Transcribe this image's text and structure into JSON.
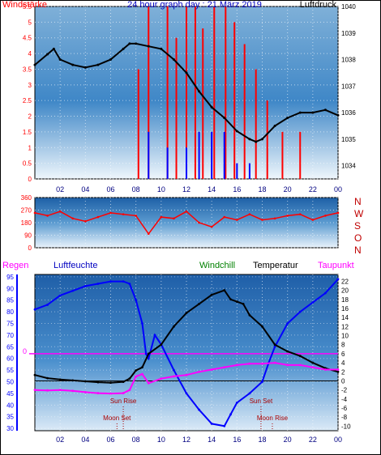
{
  "header": {
    "left_label": "Windstärke",
    "title": "24 hour graph day : 21 März 2019",
    "right_label": "Luftdruck"
  },
  "colors": {
    "red": "#ff0000",
    "blue": "#0000ff",
    "black": "#000000",
    "magenta": "#ff00ff",
    "green": "#008000",
    "navy": "#000080",
    "darkred": "#aa0000"
  },
  "chart_data": [
    {
      "type": "bar",
      "title": "24 hour graph day : 21 März 2019",
      "ylabel_left": "Windstärke",
      "ylabel_right": "Luftdruck",
      "x_ticks": [
        "02",
        "04",
        "06",
        "08",
        "10",
        "12",
        "14",
        "16",
        "18",
        "20",
        "22",
        "00"
      ],
      "y_left_ticks": [
        "0",
        "0.5",
        "1",
        "1.5",
        "2",
        "2.5",
        "3",
        "3.5",
        "4",
        "4.5",
        "5",
        "5.5"
      ],
      "y_right_ticks": [
        "1034",
        "1035",
        "1036",
        "1037",
        "1038",
        "1039",
        "1040"
      ],
      "xlim": [
        0,
        24
      ],
      "ylim_left": [
        0,
        5.5
      ],
      "ylim_right": [
        1033.5,
        1040
      ],
      "wind_gust_red": [
        [
          8.2,
          3.5
        ],
        [
          9.0,
          5.5
        ],
        [
          10.5,
          5.5
        ],
        [
          11.2,
          4.5
        ],
        [
          12.0,
          5.5
        ],
        [
          12.7,
          5.5
        ],
        [
          13.3,
          4.8
        ],
        [
          14.2,
          5.5
        ],
        [
          15.1,
          5.5
        ],
        [
          15.8,
          5.0
        ],
        [
          16.6,
          4.3
        ],
        [
          17.5,
          3.5
        ],
        [
          18.4,
          2.5
        ],
        [
          19.6,
          1.5
        ],
        [
          21.0,
          1.5
        ]
      ],
      "wind_mean_blue": [
        [
          9.0,
          1.5
        ],
        [
          10.5,
          1.0
        ],
        [
          12.0,
          1.0
        ],
        [
          13.0,
          1.5
        ],
        [
          14.0,
          1.5
        ],
        [
          15.0,
          1.5
        ],
        [
          16.0,
          0.5
        ],
        [
          17.0,
          0.5
        ]
      ],
      "series": [
        {
          "name": "Luftdruck",
          "color": "#000000",
          "points": [
            [
              0,
              1037.8
            ],
            [
              1,
              1038.2
            ],
            [
              1.5,
              1038.4
            ],
            [
              2,
              1038.0
            ],
            [
              3,
              1037.8
            ],
            [
              4,
              1037.7
            ],
            [
              5,
              1037.8
            ],
            [
              6,
              1038.0
            ],
            [
              7,
              1038.4
            ],
            [
              7.5,
              1038.6
            ],
            [
              8,
              1038.6
            ],
            [
              9,
              1038.5
            ],
            [
              10,
              1038.4
            ],
            [
              11,
              1038.0
            ],
            [
              12,
              1037.5
            ],
            [
              13,
              1036.8
            ],
            [
              14,
              1036.2
            ],
            [
              15,
              1035.8
            ],
            [
              16,
              1035.3
            ],
            [
              17,
              1035.0
            ],
            [
              17.5,
              1034.9
            ],
            [
              18,
              1035.0
            ],
            [
              19,
              1035.5
            ],
            [
              20,
              1035.8
            ],
            [
              21,
              1036.0
            ],
            [
              22,
              1036.0
            ],
            [
              23,
              1036.1
            ],
            [
              24,
              1035.9
            ]
          ]
        }
      ]
    },
    {
      "type": "scatter",
      "title": "",
      "ylabel_left": "",
      "direction_letters": [
        "N",
        "W",
        "S",
        "O",
        "N"
      ],
      "x_ticks": [
        "02",
        "04",
        "06",
        "08",
        "10",
        "12",
        "14",
        "16",
        "18",
        "20",
        "22",
        "00"
      ],
      "y_ticks": [
        "0",
        "90",
        "180",
        "270",
        "360"
      ],
      "xlim": [
        0,
        24
      ],
      "ylim": [
        0,
        360
      ],
      "direction_series": [
        {
          "name": "Windrichtung",
          "color": "#ff0000",
          "points": [
            [
              0,
              250
            ],
            [
              1,
              230
            ],
            [
              2,
              260
            ],
            [
              3,
              210
            ],
            [
              4,
              190
            ],
            [
              5,
              220
            ],
            [
              6,
              250
            ],
            [
              7,
              240
            ],
            [
              8,
              230
            ],
            [
              9,
              100
            ],
            [
              10,
              220
            ],
            [
              11,
              210
            ],
            [
              12,
              260
            ],
            [
              13,
              180
            ],
            [
              14,
              150
            ],
            [
              15,
              220
            ],
            [
              16,
              200
            ],
            [
              17,
              240
            ],
            [
              18,
              200
            ],
            [
              19,
              210
            ],
            [
              20,
              230
            ],
            [
              21,
              240
            ],
            [
              22,
              200
            ],
            [
              23,
              230
            ],
            [
              24,
              250
            ]
          ]
        }
      ]
    },
    {
      "type": "line",
      "title": "",
      "legend": [
        "Regen",
        "Luftfeuchte",
        "Windchill",
        "Temperatur",
        "Taupunkt"
      ],
      "x_ticks": [
        "02",
        "04",
        "06",
        "08",
        "10",
        "12",
        "14",
        "16",
        "18",
        "20",
        "22",
        "00"
      ],
      "y_left_ticks": [
        "30",
        "35",
        "40",
        "45",
        "50",
        "55",
        "60",
        "65",
        "70",
        "75",
        "80",
        "85",
        "90",
        "95"
      ],
      "y_right_ticks": [
        "-10",
        "-8",
        "-6",
        "-4",
        "-2",
        "0",
        "2",
        "4",
        "6",
        "8",
        "10",
        "12",
        "14",
        "16",
        "18",
        "20",
        "22"
      ],
      "rain_marker": "0",
      "xlim": [
        0,
        24
      ],
      "ylim_left": [
        29,
        96
      ],
      "ylim_right": [
        -11,
        23.5
      ],
      "annotations": [
        "Sun Rise",
        "Moon Set",
        "Sun Set",
        "Moon Rise"
      ],
      "series": [
        {
          "name": "Luftfeuchte",
          "color": "#0000ff",
          "axis": "left",
          "points": [
            [
              0,
              81
            ],
            [
              1,
              83
            ],
            [
              2,
              87
            ],
            [
              3,
              89
            ],
            [
              4,
              91
            ],
            [
              5,
              92
            ],
            [
              6,
              93
            ],
            [
              7,
              93
            ],
            [
              7.5,
              92
            ],
            [
              8,
              85
            ],
            [
              8.5,
              75
            ],
            [
              8.8,
              62
            ],
            [
              9,
              60
            ],
            [
              9.5,
              70
            ],
            [
              10,
              66
            ],
            [
              11,
              55
            ],
            [
              12,
              45
            ],
            [
              13,
              38
            ],
            [
              14,
              32
            ],
            [
              15,
              31
            ],
            [
              15.5,
              36
            ],
            [
              16,
              41
            ],
            [
              17,
              45
            ],
            [
              18,
              50
            ],
            [
              18.5,
              58
            ],
            [
              19,
              65
            ],
            [
              20,
              75
            ],
            [
              21,
              80
            ],
            [
              22,
              84
            ],
            [
              23,
              88
            ],
            [
              24,
              94
            ]
          ]
        },
        {
          "name": "Temperatur",
          "color": "#000000",
          "axis": "right",
          "points": [
            [
              0,
              1.3
            ],
            [
              1,
              0.6
            ],
            [
              2,
              0.3
            ],
            [
              3,
              0.1
            ],
            [
              4,
              -0.1
            ],
            [
              5,
              -0.3
            ],
            [
              6,
              -0.4
            ],
            [
              7,
              -0.2
            ],
            [
              7.5,
              0.5
            ],
            [
              8,
              2.3
            ],
            [
              8.5,
              3.0
            ],
            [
              9,
              6.0
            ],
            [
              10,
              8.0
            ],
            [
              11,
              12.0
            ],
            [
              12,
              15.0
            ],
            [
              13,
              17.0
            ],
            [
              14,
              19.0
            ],
            [
              15,
              20.0
            ],
            [
              15.5,
              18.0
            ],
            [
              16,
              17.5
            ],
            [
              16.5,
              17.0
            ],
            [
              17,
              14.5
            ],
            [
              18,
              12.0
            ],
            [
              19,
              8.0
            ],
            [
              20,
              6.5
            ],
            [
              21,
              5.5
            ],
            [
              22,
              4.0
            ],
            [
              23,
              2.8
            ],
            [
              24,
              2.0
            ]
          ]
        },
        {
          "name": "Taupunkt",
          "color": "#ff00ff",
          "axis": "right",
          "points": [
            [
              0,
              -2.0
            ],
            [
              1,
              -2.1
            ],
            [
              2,
              -2.0
            ],
            [
              3,
              -2.2
            ],
            [
              4,
              -2.5
            ],
            [
              5,
              -2.7
            ],
            [
              6,
              -2.8
            ],
            [
              7,
              -2.7
            ],
            [
              7.5,
              -2.0
            ],
            [
              8,
              1.0
            ],
            [
              8.5,
              1.5
            ],
            [
              9,
              -0.5
            ],
            [
              10,
              0.5
            ],
            [
              11,
              1.0
            ],
            [
              12,
              1.3
            ],
            [
              13,
              2.0
            ],
            [
              14,
              2.5
            ],
            [
              15,
              3.0
            ],
            [
              16,
              3.5
            ],
            [
              17,
              3.8
            ],
            [
              18,
              3.8
            ],
            [
              19,
              4.0
            ],
            [
              20,
              3.5
            ],
            [
              21,
              3.5
            ],
            [
              22,
              3.0
            ],
            [
              23,
              2.5
            ],
            [
              24,
              2.5
            ]
          ]
        }
      ]
    }
  ]
}
